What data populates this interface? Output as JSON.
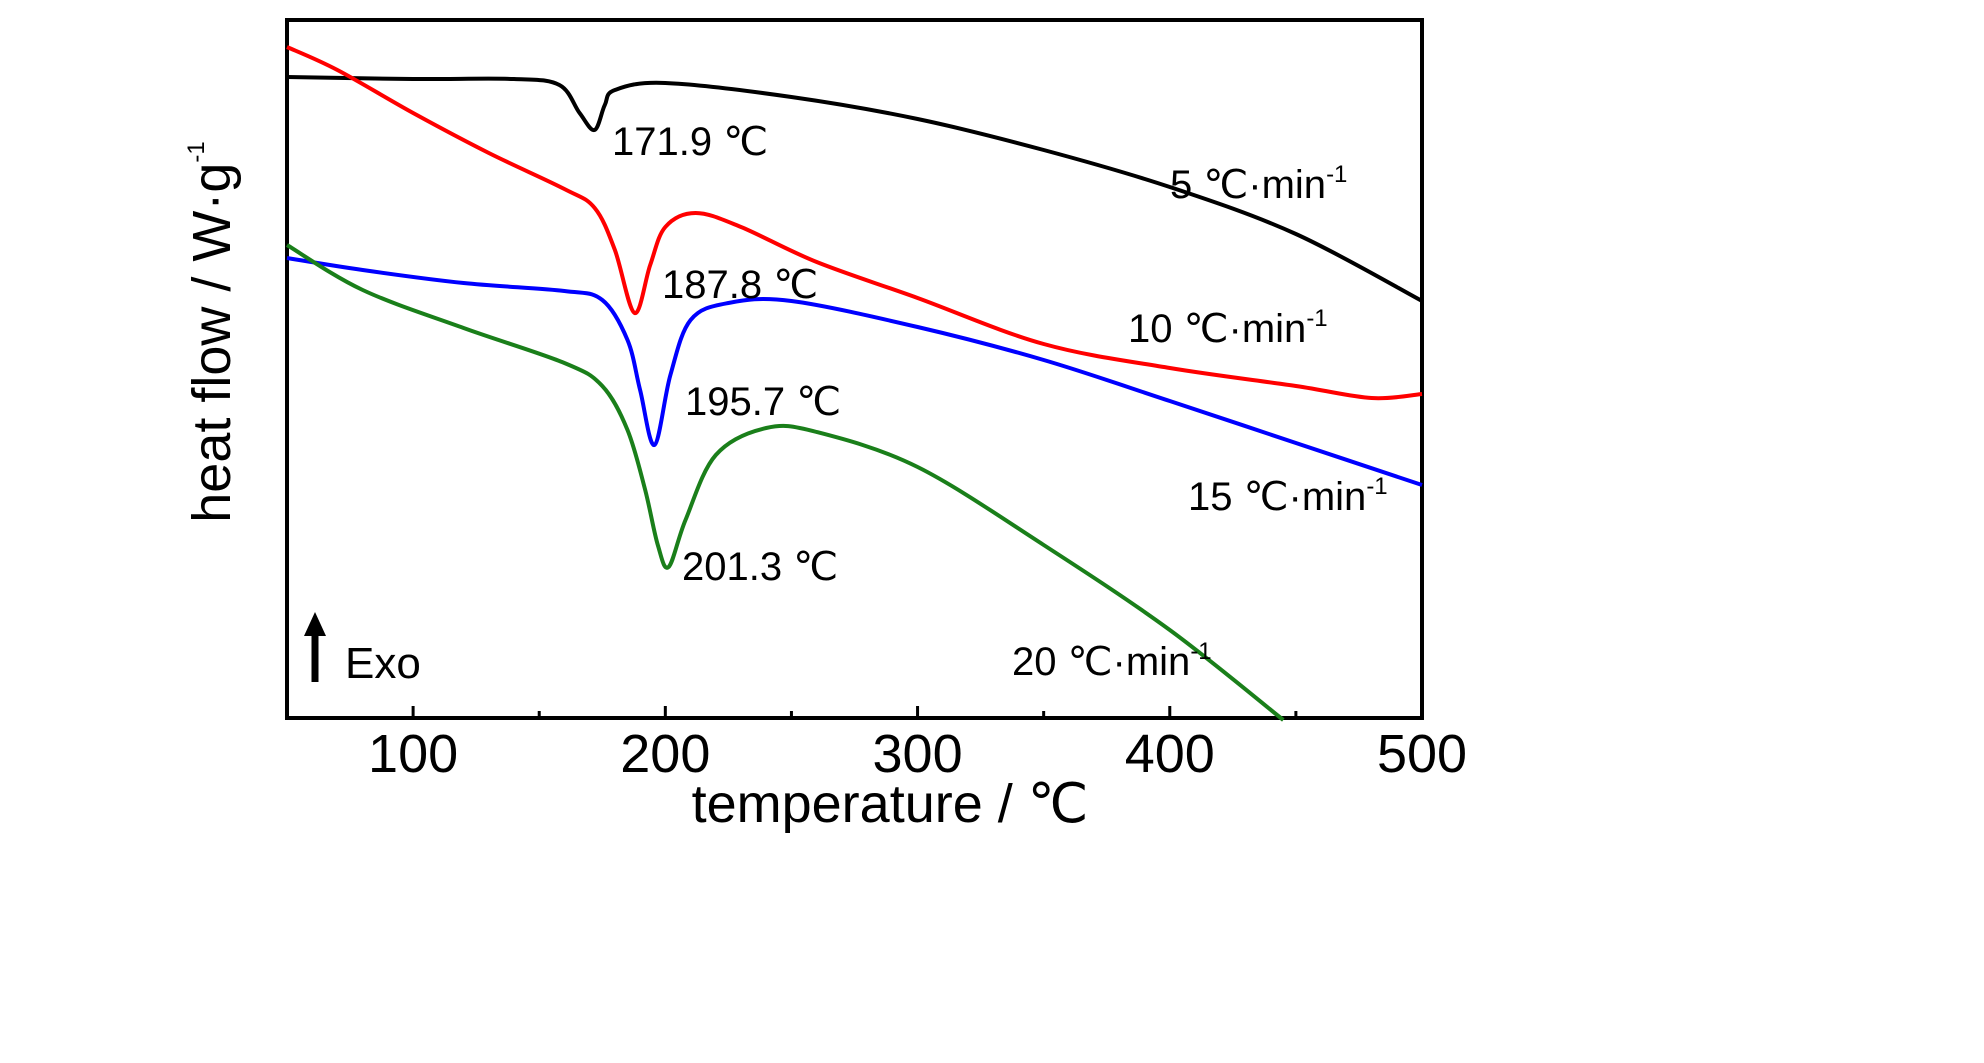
{
  "chart_data": {
    "type": "line",
    "xlabel": "temperature / ℃",
    "ylabel": "heat flow / W·g",
    "ylabel_superscript": "-1",
    "xlim": [
      50,
      500
    ],
    "xticks": [
      100,
      200,
      300,
      400,
      500
    ],
    "yticks_shown": false,
    "grid": false,
    "exo_label": "Exo",
    "series": [
      {
        "name": "5 ℃·min",
        "name_superscript": "-1",
        "color": "#000000",
        "x": [
          50,
          100,
          140,
          158,
          166,
          171.9,
          176,
          180,
          200,
          250,
          300,
          350,
          400,
          450,
          500
        ],
        "y": [
          77,
          79,
          79,
          85,
          113,
          130,
          105,
          90,
          83,
          97,
          119,
          150,
          187,
          234,
          301
        ],
        "peak_label": "171.9 ℃"
      },
      {
        "name": "10 ℃·min",
        "name_superscript": "-1",
        "color": "#ff0000",
        "x": [
          50,
          70,
          100,
          130,
          160,
          172,
          180,
          187.8,
          194,
          200,
          212,
          230,
          260,
          300,
          350,
          400,
          450,
          480,
          500
        ],
        "y": [
          47,
          70,
          113,
          153,
          189,
          208,
          250,
          313,
          265,
          227,
          213,
          227,
          262,
          298,
          344,
          368,
          386,
          398,
          394
        ],
        "peak_label": "187.8 ℃"
      },
      {
        "name": "15 ℃·min",
        "name_superscript": "-1",
        "color": "#0000ff",
        "x": [
          50,
          80,
          120,
          160,
          175,
          185,
          190,
          195.7,
          202,
          210,
          225,
          250,
          300,
          350,
          400,
          450,
          500
        ],
        "y": [
          258,
          270,
          283,
          291,
          300,
          340,
          390,
          445,
          375,
          320,
          303,
          301,
          327,
          360,
          401,
          443,
          485
        ],
        "peak_label": "195.7 ℃"
      },
      {
        "name": "20 ℃·min",
        "name_superscript": "-1",
        "color": "#1a7f1a",
        "x": [
          50,
          80,
          120,
          160,
          175,
          185,
          192,
          197,
          201.3,
          208,
          220,
          240,
          260,
          300,
          350,
          400,
          445
        ],
        "y": [
          245,
          290,
          328,
          363,
          386,
          430,
          490,
          545,
          567,
          520,
          455,
          428,
          432,
          467,
          545,
          630,
          720
        ],
        "peak_label": "201.3 ℃"
      }
    ]
  }
}
